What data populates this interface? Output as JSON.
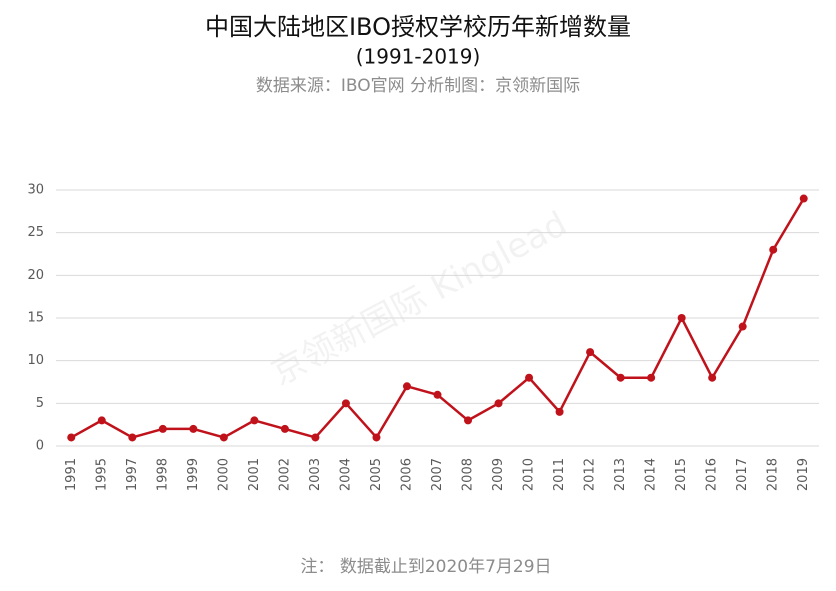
{
  "chart_data": {
    "type": "line",
    "title": "中国大陆地区IBO授权学校历年新增数量",
    "subtitle": "(1991-2019)",
    "source": "数据来源：IBO官网  分析制图：京领新国际",
    "watermark": "京领新国际 Kinglead",
    "note": "注：  数据截止到2020年7月29日",
    "categories": [
      "1991",
      "1995",
      "1997",
      "1998",
      "1999",
      "2000",
      "2001",
      "2002",
      "2003",
      "2004",
      "2005",
      "2006",
      "2007",
      "2008",
      "2009",
      "2010",
      "2011",
      "2012",
      "2013",
      "2014",
      "2015",
      "2016",
      "2017",
      "2018",
      "2019"
    ],
    "values": [
      1,
      3,
      1,
      2,
      2,
      1,
      3,
      2,
      1,
      5,
      1,
      7,
      6,
      3,
      5,
      8,
      4,
      11,
      8,
      8,
      15,
      8,
      14,
      23,
      29
    ],
    "color": "#c0121b",
    "ylim": [
      0,
      30
    ],
    "yticks": [
      0,
      5,
      10,
      15,
      20,
      25,
      30
    ],
    "grid": true
  }
}
